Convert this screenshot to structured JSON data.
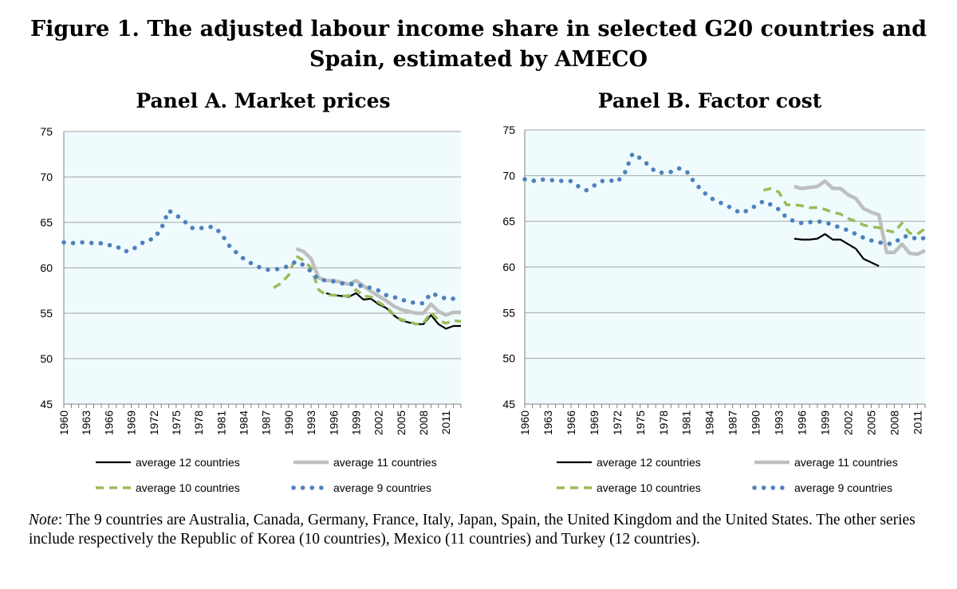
{
  "figure": {
    "title_line1": "Figure 1. The adjusted labour income share in selected G20 countries and",
    "title_line2": "Spain, estimated by AMECO"
  },
  "note": {
    "label": "Note",
    "text": ": The 9 countries are Australia, Canada, Germany, France, Italy, Japan, Spain, the United Kingdom and the United States. The other series include respectively the Republic of Korea (10 countries), Mexico (11 countries) and Turkey (12 countries)."
  },
  "colors": {
    "plot_background": "#effbfc",
    "series_12": "#000000",
    "series_11": "#bfbfbf",
    "series_10": "#9bbb59",
    "series_9": "#4f81bd"
  },
  "chart_data": [
    {
      "type": "line",
      "title": "Panel A. Market prices",
      "ylim": [
        45,
        75
      ],
      "yticks": [
        45,
        50,
        55,
        60,
        65,
        70,
        75
      ],
      "xlim": [
        1960,
        2013
      ],
      "xticks": [
        1960,
        1963,
        1966,
        1969,
        1972,
        1975,
        1978,
        1981,
        1984,
        1987,
        1990,
        1993,
        1996,
        1999,
        2002,
        2005,
        2008,
        2011
      ],
      "grid": true,
      "legend": "bottom",
      "series": [
        {
          "name": "average 12 countries",
          "style": "solid-black",
          "x": [
            1995,
            1996,
            1997,
            1998,
            1999,
            2000,
            2001,
            2002,
            2003,
            2004,
            2005,
            2006,
            2007,
            2008,
            2009,
            2010,
            2011,
            2012,
            2013
          ],
          "values": [
            57.2,
            57.0,
            56.9,
            56.8,
            57.2,
            56.5,
            56.6,
            56.0,
            55.6,
            54.8,
            54.2,
            54.0,
            53.8,
            53.8,
            54.8,
            53.8,
            53.3,
            53.6,
            53.6
          ]
        },
        {
          "name": "average 11 countries",
          "style": "solid-grey",
          "x": [
            1991,
            1992,
            1993,
            1994,
            1995,
            1996,
            1997,
            1998,
            1999,
            2000,
            2001,
            2002,
            2003,
            2004,
            2005,
            2006,
            2007,
            2008,
            2009,
            2010,
            2011,
            2012,
            2013
          ],
          "values": [
            62.1,
            61.8,
            61.0,
            58.9,
            58.6,
            58.6,
            58.4,
            58.2,
            58.6,
            58.0,
            57.4,
            56.9,
            56.4,
            55.8,
            55.4,
            55.2,
            55.0,
            55.0,
            56.0,
            55.2,
            54.8,
            55.1,
            55.1
          ]
        },
        {
          "name": "average 10 countries",
          "style": "dashed-green",
          "x": [
            1988,
            1989,
            1990,
            1991,
            1992,
            1993,
            1994,
            1995,
            1996,
            1997,
            1998,
            1999,
            2000,
            2001,
            2002,
            2003,
            2004,
            2005,
            2006,
            2007,
            2008,
            2009,
            2010,
            2011,
            2012,
            2013
          ],
          "values": [
            57.8,
            58.3,
            59.2,
            61.3,
            60.8,
            60.0,
            57.6,
            57.0,
            57.0,
            56.9,
            56.9,
            57.6,
            56.9,
            56.8,
            56.2,
            55.7,
            54.9,
            54.3,
            54.1,
            53.8,
            53.9,
            55.1,
            54.2,
            53.9,
            54.2,
            54.1
          ]
        },
        {
          "name": "average 9 countries",
          "style": "dotted-blue",
          "x": [
            1960,
            1961,
            1962,
            1963,
            1964,
            1965,
            1966,
            1967,
            1968,
            1969,
            1970,
            1971,
            1972,
            1973,
            1974,
            1975,
            1976,
            1977,
            1978,
            1979,
            1980,
            1981,
            1982,
            1983,
            1984,
            1985,
            1986,
            1987,
            1988,
            1989,
            1990,
            1991,
            1992,
            1993,
            1994,
            1995,
            1996,
            1997,
            1998,
            1999,
            2000,
            2001,
            2002,
            2003,
            2004,
            2005,
            2006,
            2007,
            2008,
            2009,
            2010,
            2011,
            2012,
            2013
          ],
          "values": [
            62.8,
            62.7,
            62.8,
            62.8,
            62.7,
            62.7,
            62.5,
            62.4,
            61.8,
            61.9,
            62.5,
            63.0,
            63.2,
            64.3,
            66.3,
            65.8,
            65.2,
            64.4,
            64.3,
            64.5,
            64.5,
            63.8,
            62.5,
            61.7,
            61.0,
            60.5,
            60.1,
            59.8,
            59.8,
            59.9,
            60.2,
            60.7,
            60.3,
            59.6,
            58.7,
            58.6,
            58.5,
            58.3,
            58.2,
            58.2,
            57.9,
            57.8,
            57.5,
            57.0,
            56.8,
            56.5,
            56.3,
            56.1,
            56.1,
            57.2,
            56.9,
            56.6,
            56.6,
            56.6
          ]
        }
      ]
    },
    {
      "type": "line",
      "title": "Panel B. Factor cost",
      "ylim": [
        45,
        75
      ],
      "yticks": [
        45,
        50,
        55,
        60,
        65,
        70,
        75
      ],
      "xlim": [
        1960,
        2012
      ],
      "xticks": [
        1960,
        1963,
        1966,
        1969,
        1972,
        1975,
        1978,
        1981,
        1984,
        1987,
        1990,
        1993,
        1996,
        1999,
        2002,
        2005,
        2008,
        2011
      ],
      "grid": true,
      "legend": "bottom",
      "series": [
        {
          "name": "average 12 countries",
          "style": "solid-black",
          "x": [
            1995,
            1996,
            1997,
            1998,
            1999,
            2000,
            2001,
            2002,
            2003,
            2004,
            2005,
            2006
          ],
          "values": [
            63.1,
            63.0,
            63.0,
            63.1,
            63.6,
            63.0,
            63.0,
            62.5,
            62.0,
            60.9,
            60.5,
            60.1
          ]
        },
        {
          "name": "average 11 countries",
          "style": "solid-grey",
          "x": [
            1995,
            1996,
            1997,
            1998,
            1999,
            2000,
            2001,
            2002,
            2003,
            2004,
            2005,
            2006,
            2007,
            2008,
            2009,
            2010,
            2011,
            2012
          ],
          "values": [
            68.8,
            68.6,
            68.7,
            68.8,
            69.4,
            68.6,
            68.6,
            67.9,
            67.5,
            66.4,
            66.0,
            65.7,
            61.6,
            61.6,
            62.5,
            61.5,
            61.4,
            61.8
          ]
        },
        {
          "name": "average 10 countries",
          "style": "dashed-green",
          "x": [
            1991,
            1992,
            1993,
            1994,
            1995,
            1996,
            1997,
            1998,
            1999,
            2000,
            2001,
            2002,
            2003,
            2004,
            2005,
            2006,
            2007,
            2008,
            2009,
            2010,
            2011,
            2012
          ],
          "values": [
            68.4,
            68.6,
            68.2,
            66.8,
            66.8,
            66.7,
            66.5,
            66.5,
            66.3,
            66.0,
            65.8,
            65.3,
            65.0,
            64.6,
            64.4,
            64.3,
            64.0,
            63.8,
            64.8,
            63.7,
            63.6,
            64.2
          ]
        },
        {
          "name": "average 9 countries",
          "style": "dotted-blue",
          "x": [
            1960,
            1961,
            1962,
            1963,
            1964,
            1965,
            1966,
            1967,
            1968,
            1969,
            1970,
            1971,
            1972,
            1973,
            1974,
            1975,
            1976,
            1977,
            1978,
            1979,
            1980,
            1981,
            1982,
            1983,
            1984,
            1985,
            1986,
            1987,
            1988,
            1989,
            1990,
            1991,
            1992,
            1993,
            1994,
            1995,
            1996,
            1997,
            1998,
            1999,
            2000,
            2001,
            2002,
            2003,
            2004,
            2005,
            2006,
            2007,
            2008,
            2009,
            2010,
            2011,
            2012
          ],
          "values": [
            69.6,
            69.4,
            69.6,
            69.5,
            69.5,
            69.4,
            69.4,
            68.8,
            68.4,
            68.9,
            69.4,
            69.5,
            69.3,
            70.3,
            72.4,
            71.9,
            71.2,
            70.4,
            70.3,
            70.4,
            70.8,
            70.5,
            69.3,
            68.4,
            67.6,
            67.2,
            66.8,
            66.4,
            65.9,
            66.2,
            66.7,
            67.2,
            66.8,
            66.3,
            65.4,
            65.0,
            64.8,
            64.9,
            65.0,
            64.9,
            64.6,
            64.3,
            64.0,
            63.6,
            63.2,
            62.9,
            62.7,
            62.5,
            62.6,
            63.3,
            63.4,
            63.0,
            63.2
          ]
        }
      ]
    }
  ]
}
